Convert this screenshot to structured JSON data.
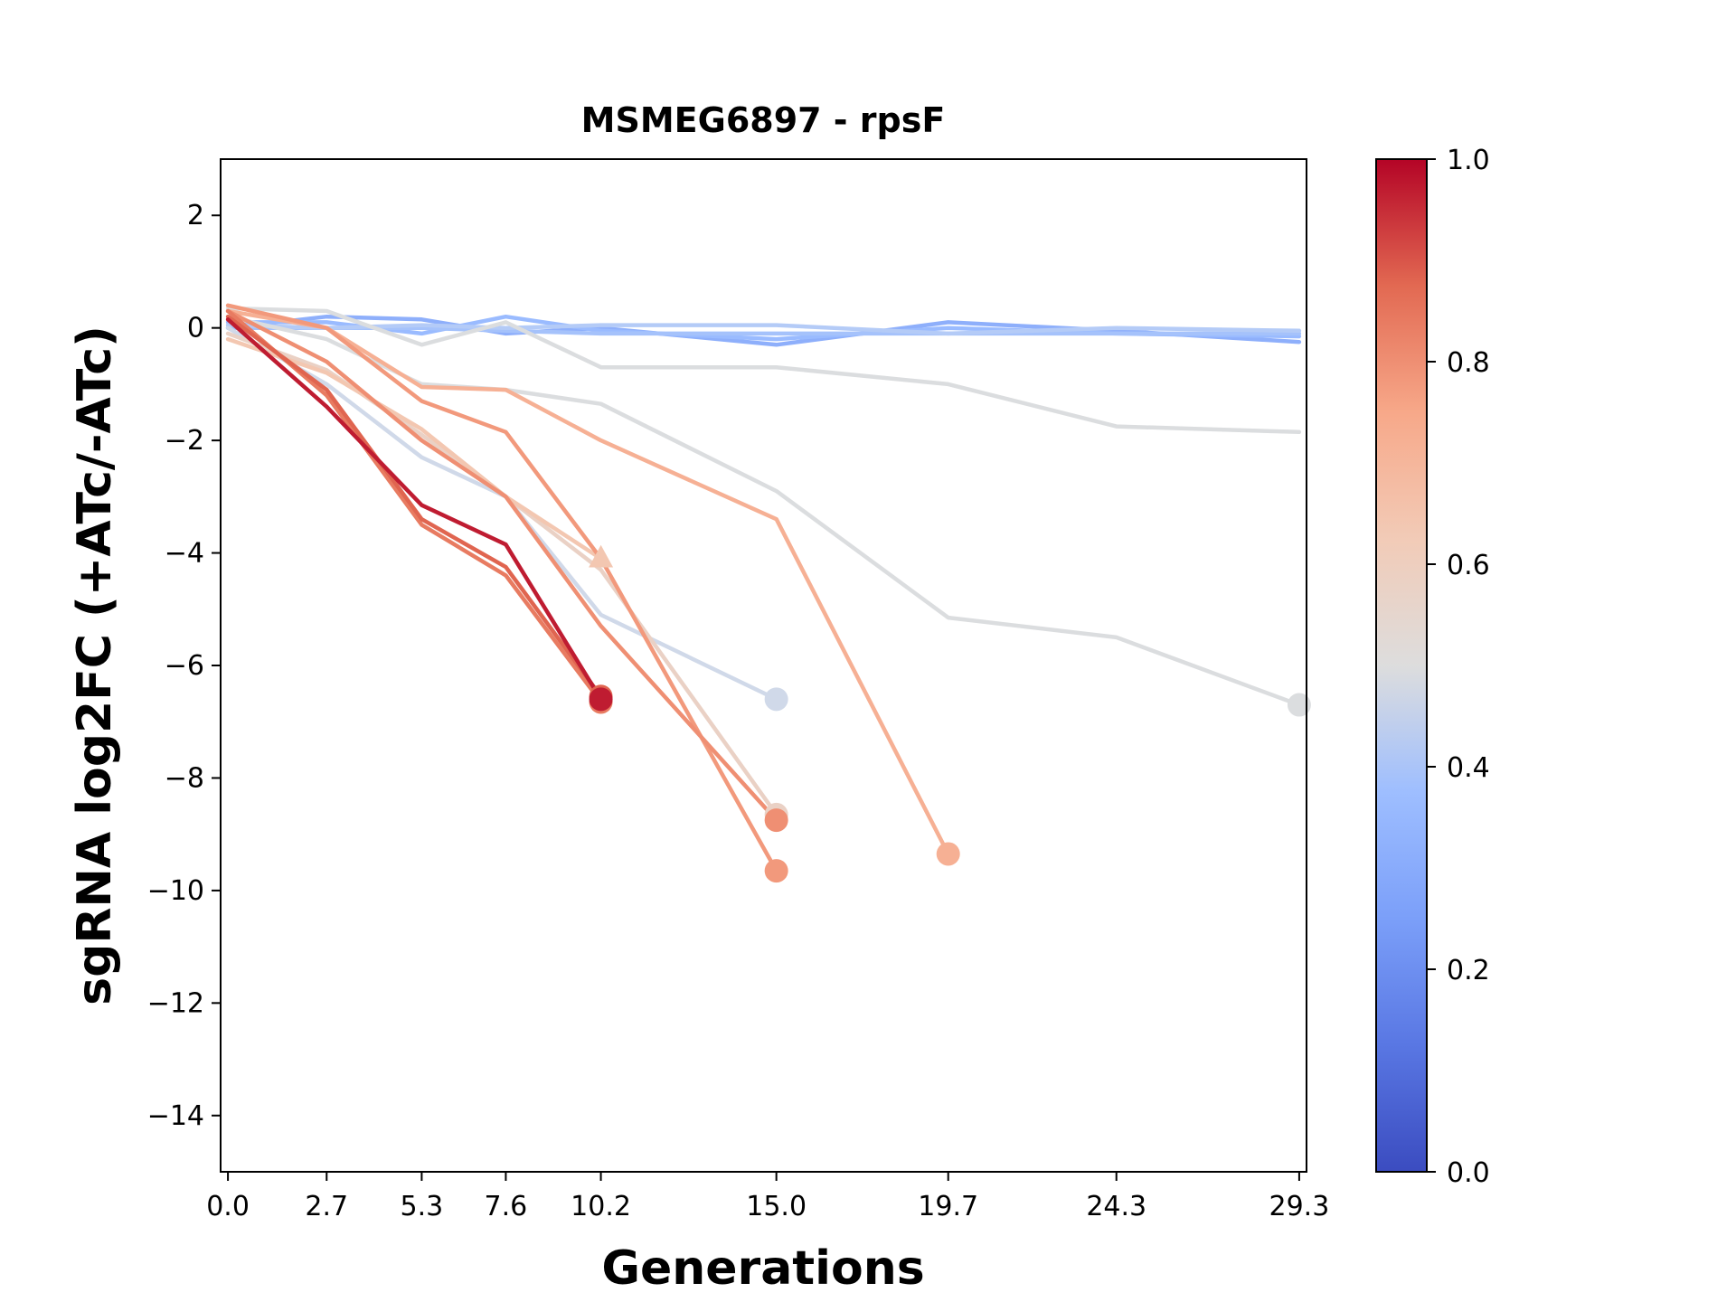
{
  "chart_data": {
    "type": "line",
    "title": "MSMEG6897 - rpsF",
    "xlabel": "Generations",
    "ylabel": "sgRNA log2FC (+ATc/-ATc)",
    "xlim": [
      -0.2,
      29.5
    ],
    "ylim": [
      -15,
      3
    ],
    "x_ticks": [
      0.0,
      2.7,
      5.3,
      7.6,
      10.2,
      15.0,
      19.7,
      24.3,
      29.3
    ],
    "x_tick_labels": [
      "0.0",
      "2.7",
      "5.3",
      "7.6",
      "10.2",
      "15.0",
      "19.7",
      "24.3",
      "29.3"
    ],
    "y_ticks": [
      2,
      0,
      -2,
      -4,
      -6,
      -8,
      -10,
      -12,
      -14
    ],
    "y_tick_labels": [
      "2",
      "0",
      "−2",
      "−4",
      "−6",
      "−8",
      "−10",
      "−12",
      "−14"
    ],
    "grid": false,
    "colorbar": {
      "range": [
        0.0,
        1.0
      ],
      "ticks": [
        0.0,
        0.2,
        0.4,
        0.6,
        0.8,
        1.0
      ],
      "tick_labels": [
        "0.0",
        "0.2",
        "0.4",
        "0.6",
        "0.8",
        "1.0"
      ],
      "colormap": "coolwarm",
      "colors": [
        "#3b4cc0",
        "#6788ee",
        "#9abbff",
        "#c9d7f0",
        "#dddddd",
        "#f2cbb7",
        "#f7a889",
        "#e26952",
        "#b40426"
      ]
    },
    "series": [
      {
        "color_value": 0.22,
        "x": [
          0.0,
          2.7,
          5.3,
          7.6,
          10.2,
          15.0,
          19.7,
          24.3,
          29.3
        ],
        "y": [
          0.0,
          0.2,
          0.15,
          -0.1,
          0.0,
          -0.3,
          0.1,
          -0.05,
          -0.25
        ],
        "end_marker": null
      },
      {
        "color_value": 0.25,
        "x": [
          0.0,
          2.7,
          5.3,
          7.6,
          10.2,
          15.0,
          19.7,
          24.3,
          29.3
        ],
        "y": [
          0.1,
          0.1,
          -0.1,
          0.2,
          -0.05,
          -0.2,
          0.0,
          -0.1,
          -0.15
        ],
        "end_marker": null
      },
      {
        "color_value": 0.28,
        "x": [
          0.0,
          2.7,
          5.3,
          7.6,
          10.2,
          15.0,
          19.7,
          24.3,
          29.3
        ],
        "y": [
          0.0,
          0.0,
          0.0,
          -0.05,
          -0.1,
          -0.1,
          -0.1,
          -0.1,
          -0.1
        ],
        "end_marker": null
      },
      {
        "color_value": 0.32,
        "x": [
          0.0,
          2.7,
          5.3,
          7.6,
          10.2,
          15.0,
          19.7,
          24.3,
          29.3
        ],
        "y": [
          0.05,
          0.0,
          0.05,
          0.0,
          0.05,
          0.05,
          -0.1,
          0.0,
          -0.05
        ],
        "end_marker": null
      },
      {
        "color_value": 0.49,
        "x": [
          0.0,
          2.7,
          5.3,
          7.6,
          10.2,
          15.0,
          19.7,
          24.3,
          29.3
        ],
        "y": [
          0.35,
          0.3,
          -0.3,
          0.1,
          -0.7,
          -0.7,
          -1.0,
          -1.75,
          -1.85
        ],
        "end_marker": null
      },
      {
        "color_value": 0.49,
        "x": [
          0.0,
          2.7,
          5.3,
          7.6,
          10.2,
          15.0,
          19.7,
          24.3,
          29.3
        ],
        "y": [
          0.2,
          -0.2,
          -1.0,
          -1.1,
          -1.35,
          -2.9,
          -5.15,
          -5.5,
          -6.7
        ],
        "end_marker": "circle"
      },
      {
        "color_value": 0.42,
        "x": [
          0.0,
          2.7,
          5.3,
          7.6,
          10.2,
          15.0
        ],
        "y": [
          0.0,
          -1.0,
          -2.3,
          -3.0,
          -5.1,
          -6.6
        ],
        "end_marker": "circle"
      },
      {
        "color_value": 0.58,
        "x": [
          0.0,
          2.7,
          5.3,
          7.6,
          10.2,
          15.0
        ],
        "y": [
          -0.1,
          -0.75,
          -1.9,
          -3.0,
          -4.3,
          -8.65
        ],
        "end_marker": "circle"
      },
      {
        "color_value": 0.64,
        "x": [
          0.0,
          2.7,
          5.3,
          7.6,
          10.2
        ],
        "y": [
          -0.2,
          -0.8,
          -1.8,
          -3.0,
          -4.1
        ],
        "end_marker": "triangle"
      },
      {
        "color_value": 0.72,
        "x": [
          0.0,
          2.7,
          5.3,
          7.6,
          10.2,
          15.0,
          19.7
        ],
        "y": [
          0.3,
          0.0,
          -1.05,
          -1.1,
          -2.0,
          -3.4,
          -9.35
        ],
        "end_marker": "circle"
      },
      {
        "color_value": 0.78,
        "x": [
          0.0,
          2.7,
          5.3,
          7.6,
          10.2,
          15.0
        ],
        "y": [
          0.4,
          0.0,
          -1.3,
          -1.85,
          -4.1,
          -9.65
        ],
        "end_marker": "circle"
      },
      {
        "color_value": 0.8,
        "x": [
          0.0,
          2.7,
          5.3,
          7.6,
          10.2,
          15.0
        ],
        "y": [
          0.3,
          -0.6,
          -2.0,
          -3.0,
          -5.3,
          -8.75
        ],
        "end_marker": "circle"
      },
      {
        "color_value": 0.84,
        "x": [
          0.0,
          2.7,
          5.3,
          7.6,
          10.2
        ],
        "y": [
          0.3,
          -1.2,
          -3.5,
          -4.4,
          -6.65
        ],
        "end_marker": "circle"
      },
      {
        "color_value": 0.88,
        "x": [
          0.0,
          2.7,
          5.3,
          7.6,
          10.2
        ],
        "y": [
          0.2,
          -1.1,
          -3.4,
          -4.25,
          -6.55
        ],
        "end_marker": "circle"
      },
      {
        "color_value": 0.97,
        "x": [
          0.0,
          2.7,
          5.3,
          7.6,
          10.2
        ],
        "y": [
          0.15,
          -1.4,
          -3.15,
          -3.85,
          -6.6
        ],
        "end_marker": "circle"
      }
    ]
  }
}
